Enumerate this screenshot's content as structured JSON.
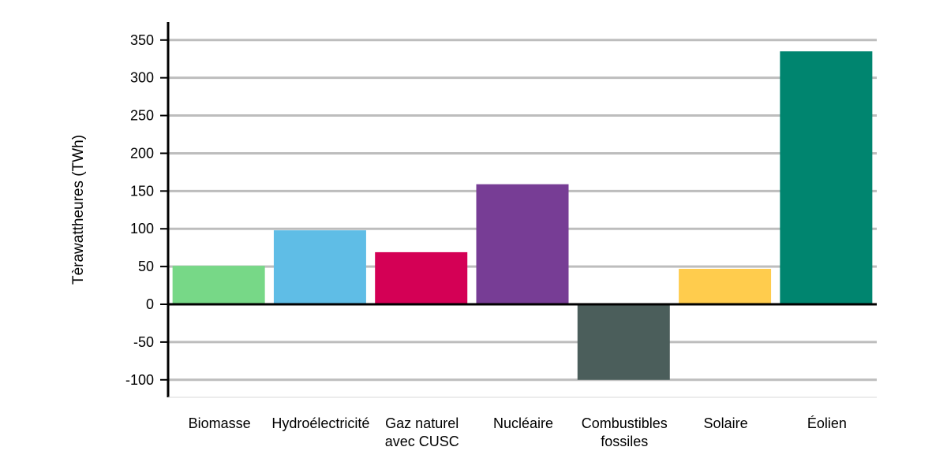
{
  "chart_data": {
    "type": "bar",
    "title": "",
    "xlabel": "",
    "ylabel": "Tèrawattheures (TWh)",
    "ylim": [
      -125,
      365
    ],
    "yticks": [
      350,
      300,
      250,
      200,
      150,
      100,
      50,
      0,
      -50,
      -100
    ],
    "grid": true,
    "categories": [
      [
        "Biomasse"
      ],
      [
        "Hydroélectricité"
      ],
      [
        "Gaz naturel",
        "avec CUSC"
      ],
      [
        "Nucléaire"
      ],
      [
        "Combustibles",
        "fossiles"
      ],
      [
        "Solaire"
      ],
      [
        "Éolien"
      ]
    ],
    "values": [
      51,
      98,
      69,
      159,
      -100,
      47,
      335
    ],
    "colors": [
      "#77D887",
      "#5FBDE6",
      "#D40055",
      "#773D95",
      "#4B5E5B",
      "#FFCC4D",
      "#00856F"
    ]
  }
}
